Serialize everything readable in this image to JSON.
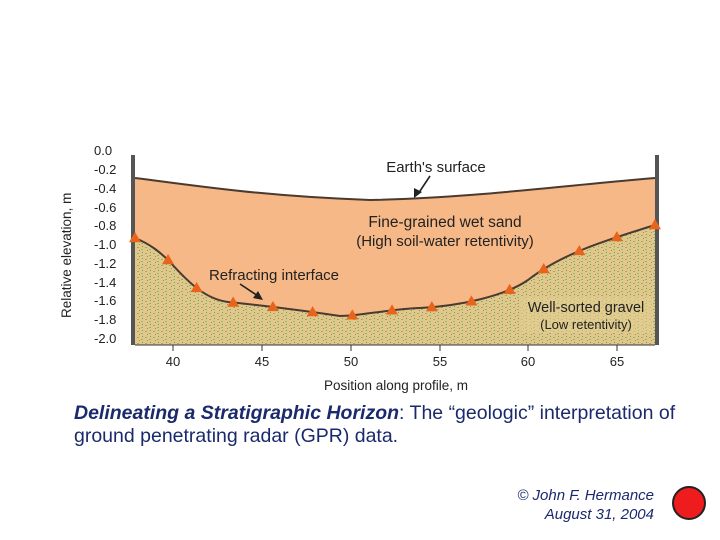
{
  "figure": {
    "y_axis_label": "Relative elevation, m",
    "x_axis_label": "Position along profile, m",
    "y_ticks": [
      "0.0",
      "-0.2",
      "-0.4",
      "-0.6",
      "-0.8",
      "-1.0",
      "-1.2",
      "-1.4",
      "-1.6",
      "-1.8",
      "-2.0"
    ],
    "x_ticks": [
      "40",
      "45",
      "50",
      "55",
      "60",
      "65"
    ],
    "annotations": {
      "earth_surface": "Earth's surface",
      "sand_line1": "Fine-grained wet sand",
      "sand_line2": "(High soil-water retentivity)",
      "refracting": "Refracting interface",
      "gravel_line1": "Well-sorted gravel",
      "gravel_line2": "(Low retentivity)"
    },
    "colors": {
      "sand": "#f7b887",
      "gravel": "#ddc98c",
      "marker": "#e8641c"
    },
    "interface_markers_count": 15
  },
  "caption": {
    "title": "Delineating a Stratigraphic Horizon",
    "colon": ":",
    "body": "The “geologic” interpretation of ground penetrating radar (GPR) data."
  },
  "credit": {
    "line1": "© John F. Hermance",
    "line2": "August 31, 2004"
  },
  "decor": {
    "dot_color": "#ee1c1c"
  }
}
